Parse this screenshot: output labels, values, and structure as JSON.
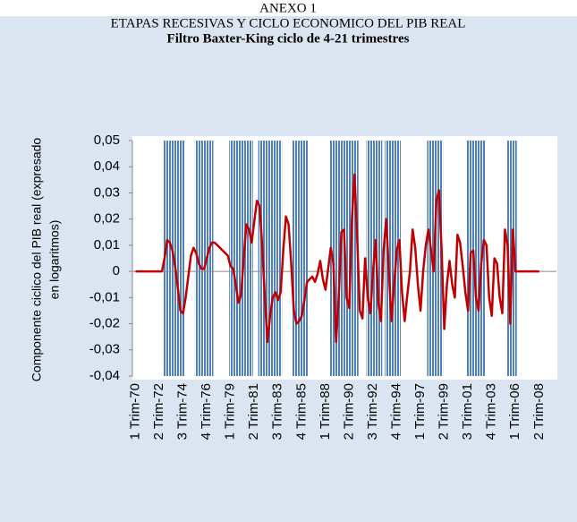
{
  "chart_data": {
    "type": "line",
    "header": "ANEXO 1",
    "title": "ETAPAS RECESIVAS Y CICLO ECONOMICO DEL PIB REAL",
    "subtitle": "Filtro Baxter-King ciclo de 4-21 trimestres",
    "ylabel": [
      "Componente ciclico del PIB real (expresado",
      "en logaritmos)"
    ],
    "categories": [
      "1 Trim-70",
      null,
      null,
      null,
      null,
      null,
      null,
      null,
      null,
      "2 Trim-72",
      null,
      null,
      null,
      null,
      null,
      null,
      null,
      null,
      "3 Trim-74",
      null,
      null,
      null,
      null,
      null,
      null,
      null,
      null,
      "4 Trim-76",
      null,
      null,
      null,
      null,
      null,
      null,
      null,
      null,
      "1 Trim-79",
      null,
      null,
      null,
      null,
      null,
      null,
      null,
      null,
      "2 Trim-81",
      null,
      null,
      null,
      null,
      null,
      null,
      null,
      null,
      "3 Trim-83",
      null,
      null,
      null,
      null,
      null,
      null,
      null,
      null,
      "4 Trim-85",
      null,
      null,
      null,
      null,
      null,
      null,
      null,
      null,
      "1 Trim-88",
      null,
      null,
      null,
      null,
      null,
      null,
      null,
      null,
      "2 Trim-90",
      null,
      null,
      null,
      null,
      null,
      null,
      null,
      null,
      "3 Trim-92",
      null,
      null,
      null,
      null,
      null,
      null,
      null,
      null,
      "4 Trim-94",
      null,
      null,
      null,
      null,
      null,
      null,
      null,
      null,
      "1 Trim-97",
      null,
      null,
      null,
      null,
      null,
      null,
      null,
      null,
      "2 Trim-99",
      null,
      null,
      null,
      null,
      null,
      null,
      null,
      null,
      "3 Trim-01",
      null,
      null,
      null,
      null,
      null,
      null,
      null,
      null,
      "4 Trim-03",
      null,
      null,
      null,
      null,
      null,
      null,
      null,
      null,
      "1 Trim-06",
      null,
      null,
      null,
      null,
      null,
      null,
      null,
      null,
      "2 Trim-08"
    ],
    "values": [
      0,
      0,
      0,
      0,
      0,
      0,
      0,
      0,
      0,
      0,
      0,
      0.005,
      0.012,
      0.011,
      0.008,
      0.002,
      -0.006,
      -0.015,
      -0.016,
      -0.01,
      -0.002,
      0.006,
      0.009,
      0.007,
      0.003,
      0.001,
      0.001,
      0.005,
      0.009,
      0.011,
      0.011,
      0.01,
      0.009,
      0.008,
      0.007,
      0.006,
      0.002,
      0.001,
      -0.005,
      -0.012,
      -0.009,
      0.005,
      0.018,
      0.016,
      0.011,
      0.019,
      0.027,
      0.025,
      0.01,
      -0.01,
      -0.027,
      -0.017,
      -0.01,
      -0.008,
      -0.011,
      -0.008,
      0.008,
      0.021,
      0.018,
      0.003,
      -0.015,
      -0.02,
      -0.019,
      -0.017,
      -0.011,
      -0.004,
      -0.003,
      -0.002,
      -0.004,
      -0.001,
      0.004,
      -0.003,
      -0.007,
      0.001,
      0.009,
      0.003,
      -0.027,
      -0.01,
      0.015,
      0.016,
      -0.01,
      -0.014,
      0.02,
      0.037,
      0.013,
      -0.015,
      -0.018,
      0.005,
      -0.01,
      -0.016,
      0,
      0.012,
      -0.012,
      -0.019,
      0.008,
      0.02,
      0,
      -0.019,
      -0.005,
      0.008,
      0.012,
      -0.008,
      -0.019,
      -0.009,
      0,
      0.016,
      0.009,
      -0.005,
      -0.015,
      0,
      0.01,
      0.016,
      0.008,
      0,
      0.027,
      0.031,
      0.008,
      -0.022,
      -0.005,
      0.004,
      -0.005,
      -0.01,
      0.014,
      0.011,
      0.002,
      -0.008,
      -0.015,
      0.007,
      0.008,
      -0.01,
      -0.015,
      0.003,
      0.012,
      0.01,
      -0.01,
      -0.017,
      0.005,
      0.003,
      -0.01,
      -0.016,
      0.016,
      0.01,
      -0.02,
      0.016,
      0,
      0,
      0,
      0,
      0,
      0,
      0,
      0,
      0,
      0
    ],
    "color": "#c00000",
    "shaded_ranges": [
      [
        11,
        18
      ],
      [
        23,
        29
      ],
      [
        36,
        44
      ],
      [
        47,
        55
      ],
      [
        60,
        65
      ],
      [
        74,
        84
      ],
      [
        88,
        93
      ],
      [
        95,
        100
      ],
      [
        111,
        116
      ],
      [
        126,
        132
      ],
      [
        141,
        144
      ]
    ],
    "shade_color": "#4f81bd",
    "ylim": [
      -0.04,
      0.05
    ],
    "yticks": [
      {
        "value": -0.04,
        "label": "-0,04"
      },
      {
        "value": -0.03,
        "label": "-0,03"
      },
      {
        "value": -0.02,
        "label": "-0,02"
      },
      {
        "value": -0.01,
        "label": "-0,01"
      },
      0,
      {
        "value": 0.01,
        "label": "0,01"
      },
      {
        "value": 0.02,
        "label": "0,02"
      },
      {
        "value": 0.03,
        "label": "0,03"
      },
      {
        "value": 0.04,
        "label": "0,04"
      },
      {
        "value": 0.05,
        "label": "0,05"
      }
    ]
  }
}
